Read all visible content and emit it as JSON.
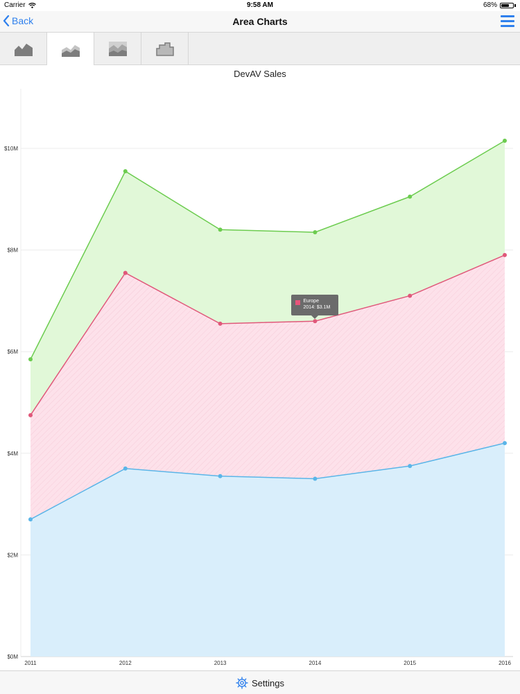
{
  "status_bar": {
    "carrier": "Carrier",
    "time": "9:58 AM",
    "battery": "68%",
    "battery_level": 0.68
  },
  "nav": {
    "back_label": "Back",
    "title": "Area Charts"
  },
  "tabs": [
    {
      "icon": "area-chart-icon",
      "active": false
    },
    {
      "icon": "stacked-area-chart-icon",
      "active": true
    },
    {
      "icon": "full-stacked-area-chart-icon",
      "active": false
    },
    {
      "icon": "step-area-chart-icon",
      "active": false
    }
  ],
  "tooltip": {
    "series": "Europe",
    "text": "2014: $3.1M",
    "color": "#e8557a"
  },
  "bottom_bar": {
    "settings_label": "Settings",
    "icon": "gear-icon"
  },
  "colors": {
    "accent": "#2f80ed"
  },
  "chart_data": {
    "type": "area",
    "stacked": true,
    "title": "DevAV Sales",
    "categories": [
      "2011",
      "2012",
      "2013",
      "2014",
      "2015",
      "2016"
    ],
    "series": [
      {
        "values": [
          2.7,
          3.7,
          3.55,
          3.5,
          3.75,
          4.2
        ],
        "color": "#5ab5e8",
        "fill": "#d9eefb"
      },
      {
        "name": "Europe",
        "values": [
          2.05,
          3.85,
          3.0,
          3.1,
          3.35,
          3.7
        ],
        "color": "#e0587a",
        "fill": "#fde1ea"
      },
      {
        "values": [
          1.1,
          2.0,
          1.85,
          1.75,
          1.95,
          2.25
        ],
        "color": "#6ccc4f",
        "fill": "#e1f8d8"
      }
    ],
    "y_ticks": [
      "$0M",
      "$2M",
      "$4M",
      "$6M",
      "$8M",
      "$10M"
    ],
    "ylim": [
      0,
      11.5
    ],
    "grid": true,
    "legend": "none"
  }
}
